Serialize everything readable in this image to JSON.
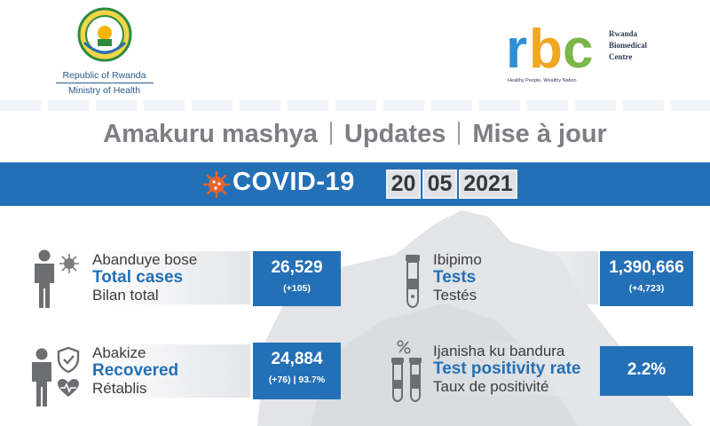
{
  "header": {
    "moh_line1": "Republic of Rwanda",
    "moh_line2": "Ministry of Health",
    "rbc_word": "rbc",
    "rbc_name_1": "Rwanda",
    "rbc_name_2": "Biomedical",
    "rbc_name_3": "Centre",
    "rbc_tagline": "Healthy People, Wealthy Nation"
  },
  "titles": {
    "rw": "Amakuru mashya",
    "en": "Updates",
    "fr": "Mise à jour"
  },
  "banner": {
    "title": "COVID-19",
    "day": "20",
    "month": "05",
    "year": "2021"
  },
  "stats": {
    "total_cases": {
      "rw": "Abanduye bose",
      "en": "Total cases",
      "fr": "Bilan total",
      "value": "26,529",
      "sub": "(+105)"
    },
    "recovered": {
      "rw": "Abakize",
      "en": "Recovered",
      "fr": "Rétablis",
      "value": "24,884",
      "sub": "(+76) | 93.7%"
    },
    "tests": {
      "rw": "Ibipimo",
      "en": "Tests",
      "fr": "Testés",
      "value": "1,390,666",
      "sub": "(+4,723)"
    },
    "positivity": {
      "rw": "Ijanisha ku bandura",
      "en": "Test positivity rate",
      "fr": "Taux de positivité",
      "value": "2.2%"
    }
  },
  "colors": {
    "brand_blue": "#2470b6",
    "title_gray": "#7d7f83",
    "virus_orange": "#e8642c"
  },
  "icons": [
    "rwanda-seal-icon",
    "person-icon",
    "virus-icon",
    "shield-check-icon",
    "heart-pulse-icon",
    "test-tube-icon",
    "percent-icon"
  ]
}
